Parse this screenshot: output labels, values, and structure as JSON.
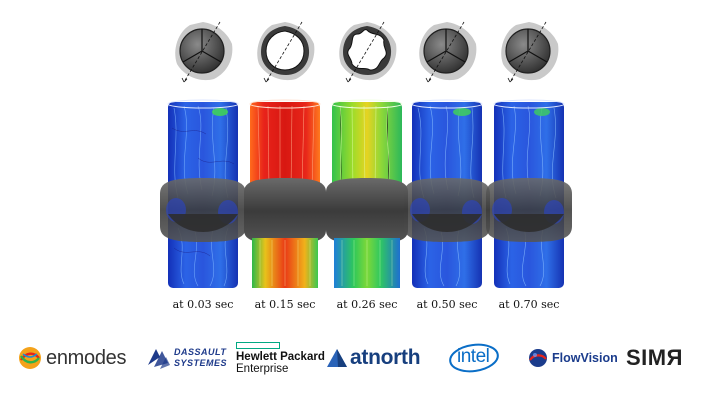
{
  "frames": [
    {
      "time_label": "at 0.03 sec",
      "flow_state": "valve-closed"
    },
    {
      "time_label": "at 0.15 sec",
      "flow_state": "valve-open"
    },
    {
      "time_label": "at 0.26 sec",
      "flow_state": "valve-open"
    },
    {
      "time_label": "at 0.50 sec",
      "flow_state": "valve-closed"
    },
    {
      "time_label": "at 0.70 sec",
      "flow_state": "valve-closed"
    }
  ],
  "colors": {
    "low_velocity": "#1a3ccf",
    "mid_velocity": "#2fd05a",
    "high_velocity": "#e8231a",
    "valve_gray": "#4a4a4a",
    "sinus_gray": "#bdbdbd"
  },
  "logos": [
    {
      "id": "enmodes",
      "text": "enmodes",
      "icon": "enmodes-swirl-icon"
    },
    {
      "id": "dassault",
      "line1": "DASSAULT",
      "line2": "SYSTEMES",
      "icon": "dassault-3ds-icon"
    },
    {
      "id": "hpe",
      "line1": "Hewlett Packard",
      "line2": "Enterprise",
      "icon": "hpe-rectangle-icon"
    },
    {
      "id": "atnorth",
      "text": "atnorth",
      "icon": "atnorth-mountain-icon"
    },
    {
      "id": "intel",
      "text": "intel",
      "icon": "intel-swoosh-icon"
    },
    {
      "id": "flowvision",
      "text": "FlowVision",
      "icon": "flowvision-sphere-icon"
    },
    {
      "id": "simr",
      "text": "SIMЯ",
      "icon": "simr-wordmark"
    }
  ]
}
